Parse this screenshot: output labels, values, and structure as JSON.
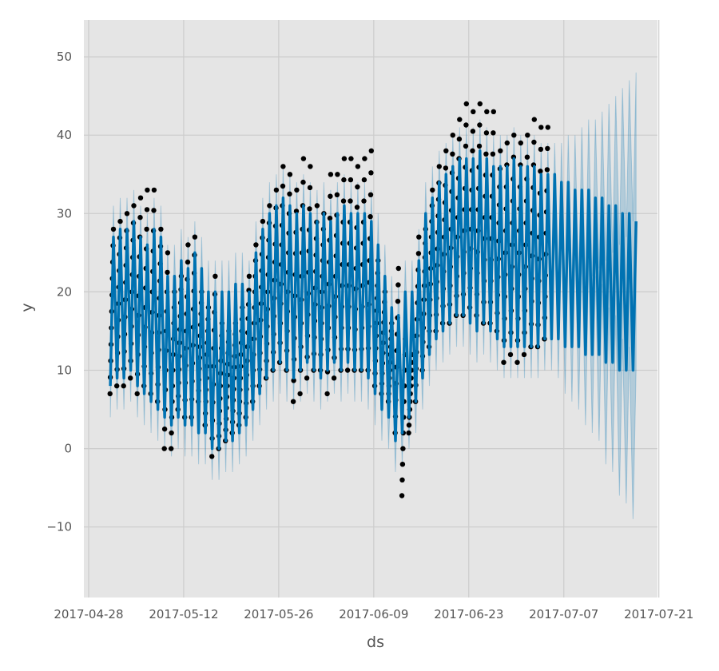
{
  "chart_data": {
    "type": "line",
    "title": "",
    "xlabel": "ds",
    "ylabel": "y",
    "x_start_date": "2017-04-28",
    "x_range_days": [
      -0.7,
      83.8
    ],
    "ylim": [
      -19,
      54.7
    ],
    "grid": true,
    "x_ticks": [
      "2017-04-28",
      "2017-05-12",
      "2017-05-26",
      "2017-06-09",
      "2017-06-23",
      "2017-07-07",
      "2017-07-21"
    ],
    "x_tick_days": [
      0,
      14,
      28,
      42,
      56,
      70,
      84
    ],
    "y_ticks": [
      -10,
      0,
      10,
      20,
      30,
      40,
      50
    ],
    "y_tick_labels": [
      "−10",
      "0",
      "10",
      "20",
      "30",
      "40",
      "50"
    ],
    "colors": {
      "forecast": "#0072B2",
      "observed": "#000000",
      "background": "#E5E5E5",
      "grid": "#CCCCCC"
    },
    "series_fields": [
      "day_offset",
      "yhat_daily_low",
      "yhat_daily_high",
      "observed_min",
      "observed_max",
      "interval_half_width"
    ],
    "daily": [
      [
        3,
        8,
        27,
        7,
        28,
        4
      ],
      [
        4,
        9,
        28,
        8,
        29,
        4
      ],
      [
        5,
        9,
        28,
        8,
        30,
        4
      ],
      [
        6,
        10,
        29,
        9,
        31,
        4
      ],
      [
        7,
        8,
        27,
        7,
        32,
        4
      ],
      [
        8,
        7,
        26,
        8,
        33,
        4
      ],
      [
        9,
        6,
        28,
        7,
        33,
        4
      ],
      [
        10,
        5,
        27,
        6,
        28,
        4
      ],
      [
        11,
        4,
        22,
        0,
        25,
        4
      ],
      [
        12,
        3,
        22,
        0,
        20,
        4
      ],
      [
        13,
        4,
        24,
        5,
        22,
        4
      ],
      [
        14,
        3,
        23,
        4,
        26,
        4
      ],
      [
        15,
        3,
        25,
        4,
        27,
        4
      ],
      [
        16,
        2,
        23,
        6,
        20,
        4
      ],
      [
        17,
        2,
        20,
        3,
        18,
        4
      ],
      [
        18,
        0,
        20,
        -1,
        22,
        4
      ],
      [
        19,
        0,
        20,
        0,
        16,
        4
      ],
      [
        20,
        1,
        20,
        1,
        15,
        4
      ],
      [
        21,
        1,
        21,
        2,
        16,
        4
      ],
      [
        22,
        2,
        21,
        3,
        18,
        4
      ],
      [
        23,
        3,
        20,
        4,
        22,
        4
      ],
      [
        24,
        5,
        25,
        6,
        26,
        4
      ],
      [
        25,
        7,
        28,
        8,
        29,
        4
      ],
      [
        26,
        9,
        30,
        9,
        31,
        4
      ],
      [
        27,
        10,
        31,
        10,
        33,
        4
      ],
      [
        28,
        11,
        32,
        11,
        36,
        4
      ],
      [
        29,
        10,
        31,
        10,
        35,
        4
      ],
      [
        30,
        9,
        30,
        6,
        33,
        4
      ],
      [
        31,
        10,
        31,
        7,
        37,
        4
      ],
      [
        32,
        11,
        30,
        9,
        36,
        4
      ],
      [
        33,
        10,
        29,
        10,
        31,
        4
      ],
      [
        34,
        9,
        30,
        10,
        30,
        4
      ],
      [
        35,
        10,
        29,
        7,
        35,
        4
      ],
      [
        36,
        11,
        30,
        9,
        35,
        4
      ],
      [
        37,
        10,
        31,
        10,
        37,
        4
      ],
      [
        38,
        11,
        30,
        10,
        37,
        4
      ],
      [
        39,
        10,
        30,
        10,
        36,
        4
      ],
      [
        40,
        10,
        30,
        10,
        37,
        4
      ],
      [
        41,
        9,
        29,
        10,
        38,
        4
      ],
      [
        42,
        7,
        26,
        8,
        24,
        4
      ],
      [
        43,
        5,
        22,
        7,
        20,
        4
      ],
      [
        44,
        4,
        18,
        6,
        16,
        4
      ],
      [
        45,
        1,
        17,
        2,
        23,
        4
      ],
      [
        46,
        2,
        20,
        -6,
        14,
        4
      ],
      [
        47,
        4,
        20,
        2,
        12,
        4
      ],
      [
        48,
        6,
        24,
        6,
        27,
        4
      ],
      [
        49,
        9,
        30,
        10,
        28,
        4
      ],
      [
        50,
        12,
        32,
        13,
        33,
        4
      ],
      [
        51,
        14,
        34,
        15,
        36,
        4
      ],
      [
        52,
        15,
        35,
        16,
        38,
        4
      ],
      [
        53,
        16,
        36,
        16,
        40,
        4
      ],
      [
        54,
        17,
        37,
        17,
        42,
        4
      ],
      [
        55,
        17,
        37,
        17,
        44,
        4
      ],
      [
        56,
        16,
        37,
        18,
        43,
        4
      ],
      [
        57,
        15,
        38,
        17,
        44,
        4
      ],
      [
        58,
        16,
        37,
        16,
        43,
        4
      ],
      [
        59,
        15,
        36,
        16,
        43,
        4
      ],
      [
        60,
        14,
        36,
        15,
        38,
        4
      ],
      [
        61,
        13,
        36,
        11,
        39,
        4
      ],
      [
        62,
        13,
        37,
        12,
        40,
        4
      ],
      [
        63,
        13,
        36,
        11,
        39,
        4
      ],
      [
        64,
        13,
        36,
        12,
        40,
        4
      ],
      [
        65,
        13,
        36,
        13,
        42,
        4
      ],
      [
        66,
        13,
        35,
        13,
        41,
        4
      ],
      [
        67,
        14,
        35,
        14,
        41,
        4
      ],
      [
        68,
        14,
        35,
        null,
        null,
        4
      ],
      [
        69,
        14,
        34,
        null,
        null,
        5
      ],
      [
        70,
        13,
        34,
        null,
        null,
        6
      ],
      [
        71,
        13,
        33,
        null,
        null,
        7
      ],
      [
        72,
        13,
        33,
        null,
        null,
        8
      ],
      [
        73,
        12,
        33,
        null,
        null,
        9
      ],
      [
        74,
        12,
        32,
        null,
        null,
        10
      ],
      [
        75,
        12,
        32,
        null,
        null,
        11
      ],
      [
        76,
        11,
        31,
        null,
        null,
        13
      ],
      [
        77,
        11,
        31,
        null,
        null,
        14
      ],
      [
        78,
        10,
        30,
        null,
        null,
        16
      ],
      [
        79,
        10,
        30,
        null,
        null,
        17
      ],
      [
        80,
        10,
        29,
        null,
        null,
        19
      ]
    ]
  }
}
